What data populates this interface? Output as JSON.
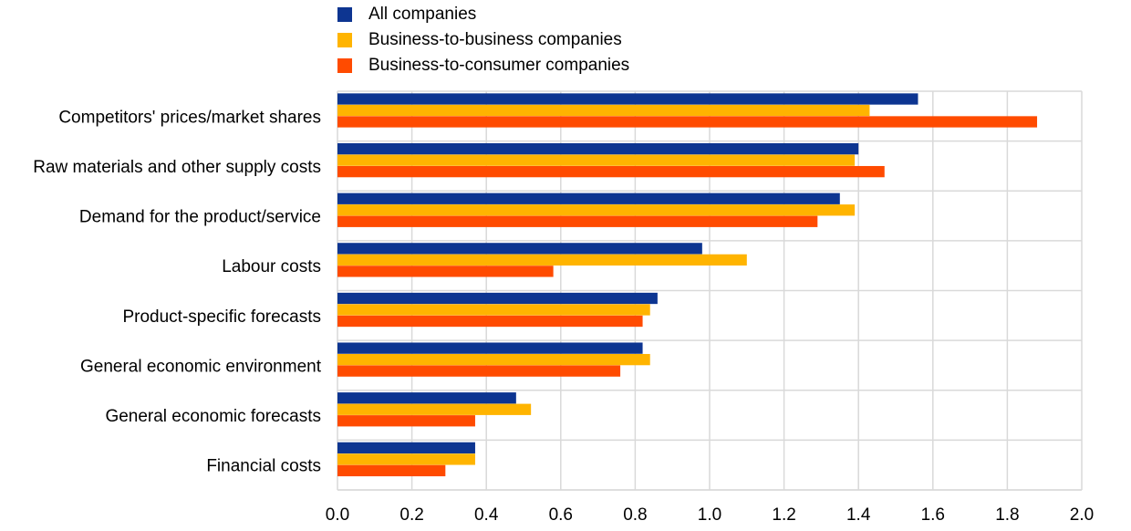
{
  "chart_data": {
    "type": "bar",
    "orientation": "horizontal",
    "categories": [
      "Competitors' prices/market shares",
      "Raw materials and other supply costs",
      "Demand for the product/service",
      "Labour costs",
      "Product-specific forecasts",
      "General economic environment",
      "General economic forecasts",
      "Financial costs"
    ],
    "series": [
      {
        "name": "All companies",
        "color": "#0D3591",
        "values": [
          1.56,
          1.4,
          1.35,
          0.98,
          0.86,
          0.82,
          0.48,
          0.37
        ]
      },
      {
        "name": "Business-to-business companies",
        "color": "#FFB400",
        "values": [
          1.43,
          1.39,
          1.39,
          1.1,
          0.84,
          0.84,
          0.52,
          0.37
        ]
      },
      {
        "name": "Business-to-consumer companies",
        "color": "#FF4B00",
        "values": [
          1.88,
          1.47,
          1.29,
          0.58,
          0.82,
          0.76,
          0.37,
          0.29
        ]
      }
    ],
    "xlim": [
      0,
      2.0
    ],
    "xticks": [
      "0.0",
      "0.2",
      "0.4",
      "0.6",
      "0.8",
      "1.0",
      "1.2",
      "1.4",
      "1.6",
      "1.8",
      "2.0"
    ],
    "grid": true,
    "legend_position": "top"
  }
}
